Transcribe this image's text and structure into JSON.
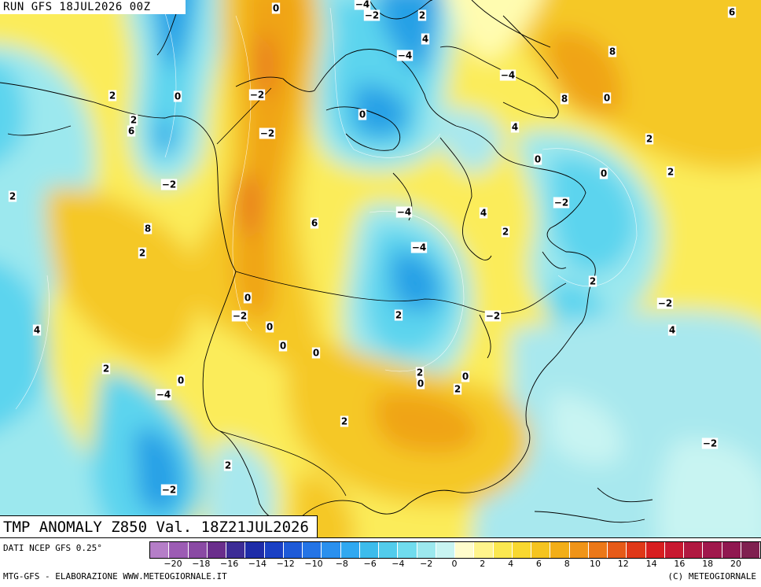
{
  "header": {
    "run_title": "RUN GFS 18JUL2026 00Z"
  },
  "map": {
    "title": "TMP ANOMALY Z850 Val. 18Z21JUL2026",
    "field": "850 hPa temperature anomaly",
    "contour_labels": [
      "-4",
      "0",
      "-2",
      "2",
      "6",
      "4",
      "-4",
      "8",
      "2",
      "0",
      "-2",
      "-4",
      "8",
      "0",
      "2",
      "6",
      "-2",
      "0",
      "4",
      "2",
      "-2",
      "0",
      "0",
      "2",
      "2",
      "-4",
      "-2",
      "8",
      "6",
      "4",
      "2",
      "2",
      "-4",
      "0",
      "-2",
      "2",
      "2",
      "-2",
      "-2",
      "0",
      "4",
      "4",
      "0",
      "0",
      "2",
      "0",
      "-4",
      "2",
      "0",
      "0",
      "2",
      "2",
      "-2",
      "2",
      "-2"
    ],
    "colors": {
      "neg4": "#28a0e6",
      "neg2": "#5cd4ee",
      "zero_neg": "#a8e8ee",
      "zero_pos": "#fffcb0",
      "pos2": "#fbec5a",
      "pos4": "#f5c828",
      "pos6": "#f0a418",
      "pos8": "#e8781a"
    }
  },
  "footer": {
    "data_source": "DATI NCEP GFS 0.25°",
    "credits": "MTG-GFS - ELABORAZIONE WWW.METEOGIORNALE.IT",
    "copyright": "(C) METEOGIORNALE"
  },
  "legend": {
    "colors": [
      "#b57ec8",
      "#9c5cb4",
      "#8a4aa4",
      "#6a2e8c",
      "#3c2c96",
      "#1e2ca8",
      "#1a40c4",
      "#1e5ad8",
      "#2474e6",
      "#2a90ee",
      "#30a8f0",
      "#3cbcec",
      "#52ccec",
      "#70dcee",
      "#9ce8ee",
      "#c8f4f2",
      "#fffccc",
      "#fff48c",
      "#fbe850",
      "#f8d830",
      "#f5c420",
      "#f2ae18",
      "#f09418",
      "#ec7818",
      "#e65a18",
      "#e03818",
      "#d81e20",
      "#c81830",
      "#b01840",
      "#a0184c",
      "#901850",
      "#802050"
    ],
    "ticks": [
      "-20",
      "-18",
      "-16",
      "-14",
      "-12",
      "-10",
      "-8",
      "-6",
      "-4",
      "-2",
      "0",
      "2",
      "4",
      "6",
      "8",
      "10",
      "12",
      "14",
      "16",
      "18",
      "20"
    ]
  }
}
